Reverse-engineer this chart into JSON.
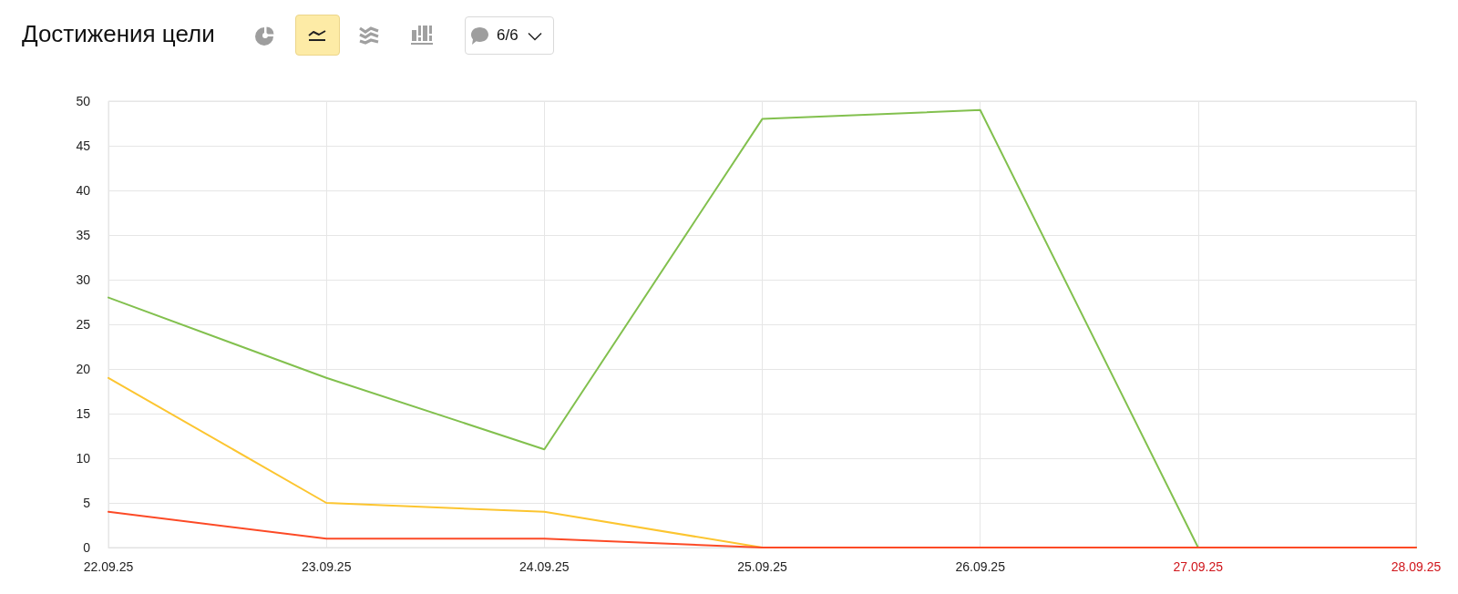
{
  "chart_data": {
    "type": "line",
    "title": "Достижения цели",
    "categories": [
      "22.09.25",
      "23.09.25",
      "24.09.25",
      "25.09.25",
      "26.09.25",
      "27.09.25",
      "28.09.25"
    ],
    "series": [
      {
        "color": "#82c04e",
        "values": [
          28,
          19,
          11,
          48,
          49,
          0,
          0
        ]
      },
      {
        "color": "#fcc530",
        "values": [
          19,
          5,
          4,
          0,
          0,
          null,
          null
        ]
      },
      {
        "color": "#fc4a26",
        "values": [
          4,
          1,
          1,
          0,
          0,
          0,
          0
        ]
      }
    ],
    "ylim": [
      0,
      50
    ],
    "yticks": [
      0,
      5,
      10,
      15,
      20,
      25,
      30,
      35,
      40,
      45,
      50
    ],
    "grid": true,
    "marker": "none",
    "line_style": "solid",
    "annotations": [
      "6/6"
    ]
  }
}
